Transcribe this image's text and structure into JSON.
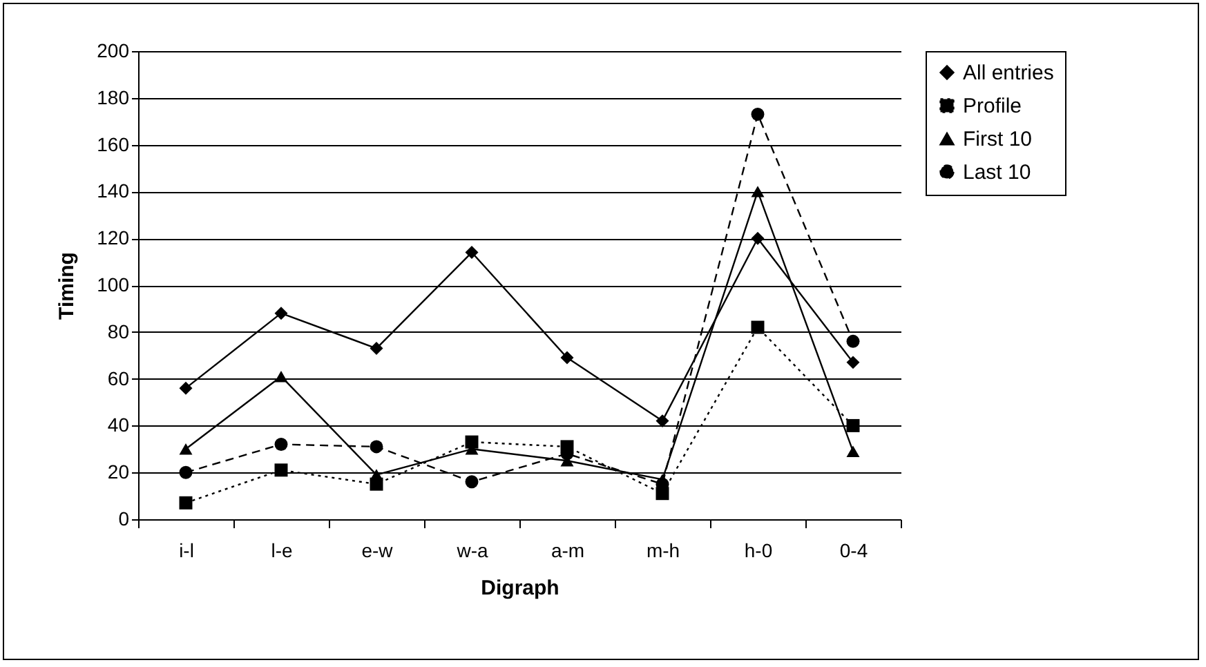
{
  "chart_data": {
    "type": "line",
    "xlabel": "Digraph",
    "ylabel": "Timing",
    "categories": [
      "i-l",
      "l-e",
      "e-w",
      "w-a",
      "a-m",
      "m-h",
      "h-0",
      "0-4"
    ],
    "ylim": [
      0,
      200
    ],
    "yticks": [
      0,
      20,
      40,
      60,
      80,
      100,
      120,
      140,
      160,
      180,
      200
    ],
    "grid": "y",
    "legend": "right",
    "series": [
      {
        "name": "All entries",
        "color": "#000000",
        "marker": "diamond",
        "line_style": "solid",
        "values": [
          56,
          88,
          73,
          114,
          69,
          42,
          120,
          67
        ]
      },
      {
        "name": "Profile",
        "color": "#000000",
        "marker": "square",
        "line_style": "dotted",
        "values": [
          7,
          21,
          15,
          33,
          31,
          11,
          82,
          40
        ]
      },
      {
        "name": "First 10",
        "color": "#000000",
        "marker": "triangle",
        "line_style": "solid",
        "values": [
          30,
          61,
          19,
          30,
          25,
          17,
          140,
          29
        ]
      },
      {
        "name": "Last 10",
        "color": "#000000",
        "marker": "circle",
        "line_style": "dashed",
        "values": [
          20,
          32,
          31,
          16,
          28,
          15,
          173,
          76
        ]
      }
    ]
  }
}
